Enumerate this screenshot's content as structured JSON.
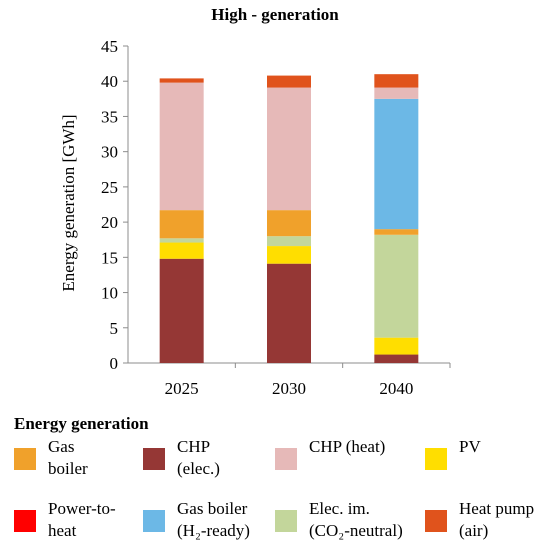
{
  "chart_data": {
    "type": "bar",
    "stacked": true,
    "title": "High - generation",
    "ylabel": "Energy generation [GWh]",
    "xlabel": "",
    "ylim": [
      0,
      45
    ],
    "yticks": [
      "0",
      "5",
      "10",
      "15",
      "20",
      "25",
      "30",
      "35",
      "40",
      "45"
    ],
    "categories": [
      "2025",
      "2030",
      "2040"
    ],
    "grid": false,
    "legend_position": "bottom",
    "legend_title": "Energy generation",
    "series": [
      {
        "name": "CHP (elec.)",
        "color": "#953735",
        "values": [
          14.8,
          14.1,
          1.2
        ]
      },
      {
        "name": "PV",
        "color": "#ffde00",
        "values": [
          2.3,
          2.5,
          2.4
        ]
      },
      {
        "name": "Elec. im. (CO2-neutral)",
        "color": "#c3d69b",
        "values": [
          0.6,
          1.4,
          14.6
        ]
      },
      {
        "name": "Gas boiler",
        "color": "#f0a12b",
        "values": [
          4.0,
          3.7,
          0.8
        ]
      },
      {
        "name": "Gas boiler (H2-ready)",
        "color": "#6cb8e6",
        "values": [
          0,
          0,
          18.5
        ]
      },
      {
        "name": "CHP (heat)",
        "color": "#e6b9b8",
        "values": [
          18.1,
          17.4,
          1.6
        ]
      },
      {
        "name": "Power-to-heat",
        "color": "#ff0000",
        "values": [
          0,
          0,
          0
        ]
      },
      {
        "name": "Heat pump (air)",
        "color": "#e0531c",
        "values": [
          0.6,
          1.7,
          1.9
        ]
      }
    ]
  },
  "legend": {
    "items": [
      {
        "label": "Gas\nboiler",
        "color": "#f0a12b"
      },
      {
        "label": "CHP\n(elec.)",
        "color": "#953735"
      },
      {
        "label": "CHP (heat)",
        "color": "#e6b9b8"
      },
      {
        "label": "PV",
        "color": "#ffde00"
      },
      {
        "label": "Power-to-\nheat",
        "color": "#ff0000"
      },
      {
        "label": "Gas boiler\n(H₂-ready)",
        "color": "#6cb8e6"
      },
      {
        "label": "Elec. im.\n(CO₂-neutral)",
        "color": "#c3d69b"
      },
      {
        "label": "Heat pump\n(air)",
        "color": "#e0531c"
      }
    ]
  }
}
